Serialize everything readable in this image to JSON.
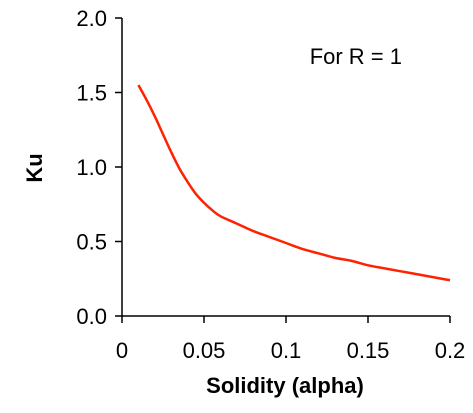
{
  "chart_data": {
    "type": "line",
    "title": "",
    "xlabel": "Solidity (alpha)",
    "ylabel": "Ku",
    "xlim": [
      0,
      0.2
    ],
    "ylim": [
      0,
      2.0
    ],
    "x_ticks": [
      0,
      0.05,
      0.1,
      0.15,
      0.2
    ],
    "x_tick_labels": [
      "0",
      "0.05",
      "0.1",
      "0.15",
      "0.2"
    ],
    "y_ticks": [
      0,
      0.5,
      1.0,
      1.5,
      2.0
    ],
    "y_tick_labels": [
      "0.0",
      "0.5",
      "1.0",
      "1.5",
      "2.0"
    ],
    "annotation": "For R = 1",
    "grid": false,
    "legend": "none",
    "series": [
      {
        "color": "#ff2200",
        "x": [
          0.01,
          0.015,
          0.02,
          0.025,
          0.03,
          0.035,
          0.04,
          0.045,
          0.05,
          0.055,
          0.06,
          0.07,
          0.08,
          0.09,
          0.1,
          0.11,
          0.12,
          0.13,
          0.14,
          0.15,
          0.16,
          0.17,
          0.18,
          0.19,
          0.2
        ],
        "y": [
          1.55,
          1.45,
          1.34,
          1.22,
          1.1,
          0.99,
          0.9,
          0.82,
          0.76,
          0.71,
          0.67,
          0.62,
          0.57,
          0.53,
          0.49,
          0.45,
          0.42,
          0.39,
          0.37,
          0.34,
          0.32,
          0.3,
          0.28,
          0.26,
          0.24
        ]
      }
    ]
  }
}
